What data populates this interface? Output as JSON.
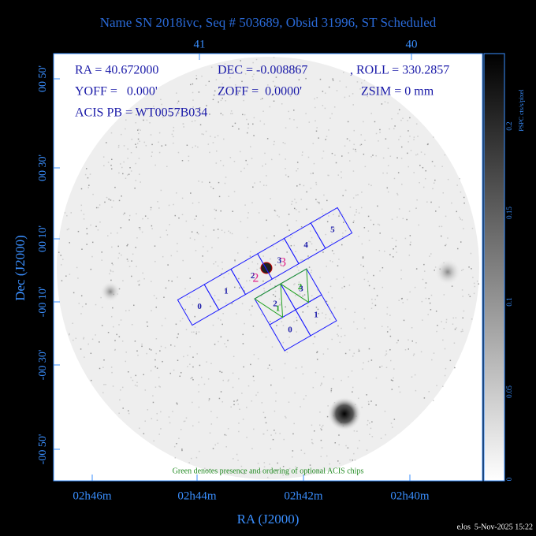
{
  "title": "Name SN 2018ivc, Seq # 503689, Obsid 31996, ST Scheduled",
  "info": [
    "RA = 40.672000",
    "DEC = -0.008867",
    ", ROLL = 330.2857",
    "YOFF =   0.000'",
    "ZOFF =  0.0000'",
    "ZSIM = 0 mm",
    "ACIS PB = WT0057B034"
  ],
  "top_axis": {
    "ticks": [
      "41",
      "40"
    ]
  },
  "x_axis": {
    "label": "RA (J2000)",
    "ticks": [
      "02h46m",
      "02h44m",
      "02h42m",
      "02h40m"
    ]
  },
  "y_axis": {
    "label": "Dec (J2000)",
    "ticks": [
      "00 50'",
      "00 30'",
      "00 10'",
      "-00 10'",
      "-00 30'",
      "-00 50'"
    ]
  },
  "colorbar": {
    "label": "PSPC cts/s/pixel",
    "ticks": [
      "0.2",
      "0.15",
      "0.1",
      "0.05",
      "0"
    ]
  },
  "acis_s": [
    "0",
    "1",
    "2",
    "3",
    "4",
    "5"
  ],
  "acis_i": [
    "0",
    "1",
    "2",
    "3"
  ],
  "optional": [
    "1",
    "2"
  ],
  "aimpoint": [
    "2",
    "3"
  ],
  "footnote": "Green denotes presence and ordering of optional ACIS chips",
  "stamp": "eJos  5-Nov-2025 15:22"
}
